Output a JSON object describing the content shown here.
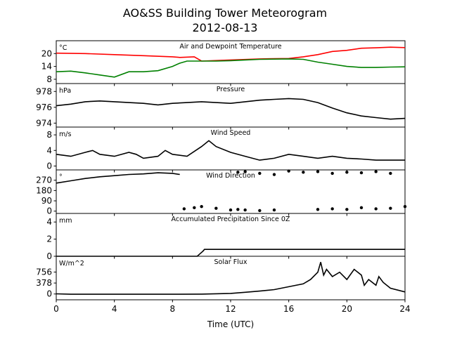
{
  "chart_data": {
    "type": "line",
    "title": "AO&SS Building Tower Meteorogram",
    "subtitle": "2012-08-13",
    "xlabel": "Time (UTC)",
    "xlim": [
      0,
      24
    ],
    "xticks": [
      0,
      4,
      8,
      12,
      16,
      20,
      24
    ],
    "panels": [
      {
        "id": "temp",
        "title": "Air and Dewpoint Temperature",
        "units": "°C",
        "ylim": [
          6,
          26
        ],
        "yticks": [
          8,
          14,
          20
        ],
        "series": [
          {
            "key": "air",
            "color": "#ff0000",
            "x": [
              0,
              2,
              4,
              6,
              8,
              8.5,
              9.5,
              10,
              12,
              14,
              16,
              17,
              18,
              19,
              20,
              21,
              22,
              23,
              24
            ],
            "y": [
              20.2,
              20,
              19.5,
              19,
              18.5,
              18.2,
              18.5,
              16.5,
              17,
              17.5,
              17.7,
              18.5,
              19.5,
              21,
              21.5,
              22.5,
              22.7,
              23,
              22.8
            ]
          },
          {
            "key": "dewpoint",
            "color": "#008000",
            "x": [
              0,
              1,
              2,
              3,
              4,
              5,
              6,
              7,
              8,
              8.5,
              9,
              10,
              11,
              12,
              13,
              14,
              15,
              16,
              17,
              18,
              19,
              20,
              21,
              22,
              23,
              24
            ],
            "y": [
              11.5,
              11.8,
              11,
              10,
              9,
              11.5,
              11.5,
              12,
              14,
              15.5,
              16.5,
              16.5,
              16.5,
              16.7,
              17,
              17.3,
              17.4,
              17.5,
              17.3,
              16,
              15,
              14,
              13.5,
              13.5,
              13.7,
              13.8
            ]
          }
        ]
      },
      {
        "id": "pressure",
        "title": "Pressure",
        "units": "hPa",
        "ylim": [
          973.5,
          979
        ],
        "yticks": [
          974,
          976,
          978
        ],
        "series": [
          {
            "key": "pressure",
            "color": "#000000",
            "x": [
              0,
              1,
              2,
              3,
              4,
              5,
              6,
              7,
              8,
              9,
              10,
              11,
              12,
              13,
              14,
              15,
              16,
              17,
              18,
              19,
              20,
              21,
              22,
              23,
              24
            ],
            "y": [
              976.2,
              976.4,
              976.7,
              976.8,
              976.7,
              976.6,
              976.5,
              976.3,
              976.5,
              976.6,
              976.7,
              976.6,
              976.5,
              976.7,
              976.9,
              977,
              977.1,
              977,
              976.6,
              975.9,
              975.3,
              974.9,
              974.7,
              974.5,
              974.6
            ]
          }
        ]
      },
      {
        "id": "wind_speed",
        "title": "Wind Speed",
        "units": "m/s",
        "ylim": [
          -1,
          10
        ],
        "yticks": [
          0,
          4,
          8
        ],
        "series": [
          {
            "key": "wind_speed",
            "color": "#000000",
            "x": [
              0,
              1,
              2,
              2.5,
              3,
              4,
              5,
              5.5,
              6,
              7,
              7.5,
              8,
              9,
              10,
              10.5,
              11,
              12,
              13,
              14,
              15,
              16,
              17,
              18,
              19,
              20,
              21,
              22,
              23,
              24
            ],
            "y": [
              3,
              2.5,
              3.5,
              4,
              3,
              2.5,
              3.5,
              3,
              2,
              2.5,
              4,
              3,
              2.5,
              5,
              6.5,
              5,
              3.5,
              2.5,
              1.5,
              2,
              3,
              2.5,
              2,
              2.5,
              2,
              1.8,
              1.5,
              1.5,
              1.5
            ]
          }
        ]
      },
      {
        "id": "wind_dir",
        "title": "Wind Direction",
        "units": "°",
        "ylim": [
          -20,
          360
        ],
        "yticks": [
          0,
          90,
          180,
          270
        ],
        "series": [
          {
            "key": "wind_dir_line",
            "color": "#000000",
            "x": [
              0,
              1,
              2,
              3,
              4,
              5,
              6,
              7,
              8,
              8.5
            ],
            "y": [
              245,
              265,
              285,
              300,
              310,
              320,
              325,
              335,
              330,
              320
            ]
          },
          {
            "key": "wind_dir_low",
            "color": "#000000",
            "markers": true,
            "x": [
              8.8,
              9.5,
              10,
              11,
              12,
              12.5,
              13,
              14,
              15,
              18,
              19,
              20,
              21,
              22,
              23,
              24
            ],
            "y": [
              20,
              30,
              40,
              25,
              10,
              15,
              10,
              5,
              10,
              15,
              20,
              15,
              30,
              20,
              25,
              40
            ]
          },
          {
            "key": "wind_dir_high",
            "color": "#000000",
            "markers": true,
            "x": [
              12.5,
              13,
              14,
              15,
              16,
              17,
              18,
              19,
              20,
              21,
              22,
              23
            ],
            "y": [
              340,
              345,
              330,
              320,
              350,
              340,
              345,
              330,
              340,
              335,
              345,
              330
            ]
          }
        ]
      },
      {
        "id": "precip",
        "title": "Accumulated Precipitation Since 0Z",
        "units": "mm",
        "ylim": [
          0,
          5
        ],
        "yticks": [
          0,
          2,
          4
        ],
        "series": [
          {
            "key": "precip",
            "color": "#000000",
            "x": [
              0,
              9.7,
              9.9,
              10.1,
              10.2,
              24
            ],
            "y": [
              0,
              0,
              0.3,
              0.6,
              0.8,
              0.8
            ]
          }
        ]
      },
      {
        "id": "solar",
        "title": "Solar Flux",
        "units": "W/m^2",
        "ylim": [
          -200,
          1300
        ],
        "yticks": [
          0,
          378,
          756
        ],
        "series": [
          {
            "key": "solar",
            "color": "#000000",
            "x": [
              0,
              1,
              2,
              4,
              6,
              8,
              10,
              12,
              13,
              14,
              15,
              16,
              17,
              17.5,
              18,
              18.2,
              18.4,
              18.6,
              19,
              19.5,
              20,
              20.5,
              21,
              21.2,
              21.5,
              22,
              22.2,
              22.5,
              23,
              24
            ],
            "y": [
              5,
              -10,
              -10,
              -10,
              -10,
              -10,
              -5,
              20,
              60,
              100,
              150,
              250,
              350,
              500,
              750,
              1100,
              650,
              850,
              600,
              750,
              500,
              850,
              650,
              300,
              500,
              300,
              600,
              400,
              200,
              70
            ]
          }
        ]
      }
    ]
  }
}
